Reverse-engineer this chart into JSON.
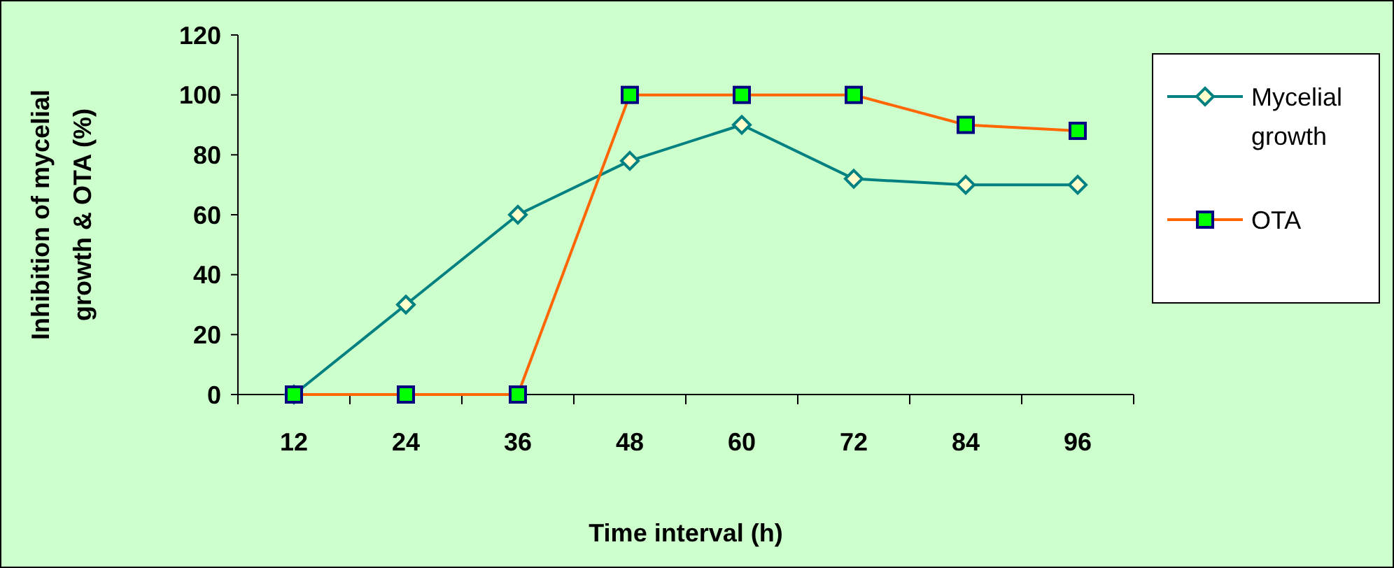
{
  "chart_data": {
    "type": "line",
    "xlabel": "Time interval (h)",
    "ylabel": "Inhibition of mycelial growth & OTA (%)",
    "categories": [
      "12",
      "24",
      "36",
      "48",
      "60",
      "72",
      "84",
      "96"
    ],
    "series": [
      {
        "name": "Mycelial growth",
        "color": "#008080",
        "marker": "diamond",
        "values": [
          0,
          30,
          60,
          78,
          90,
          72,
          70,
          70
        ]
      },
      {
        "name": "OTA",
        "color": "#ff6600",
        "marker": "square",
        "values": [
          0,
          0,
          0,
          100,
          100,
          100,
          90,
          88
        ]
      }
    ],
    "ylim": [
      0,
      120
    ],
    "yticks": [
      0,
      20,
      40,
      60,
      80,
      100,
      120
    ],
    "grid": false,
    "legend": "right",
    "line_style": "solid"
  }
}
